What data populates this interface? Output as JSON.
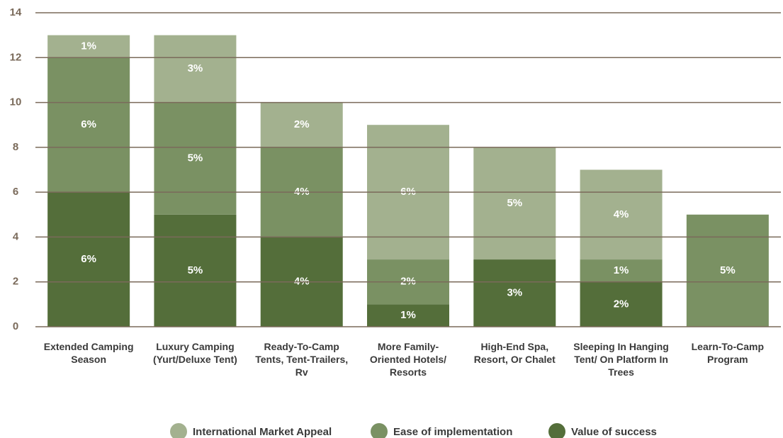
{
  "chart_data": {
    "type": "stacked_bar",
    "categories": [
      "Extended Camping Season",
      "Luxury Camping (Yurt/Deluxe Tent)",
      "Ready-To-Camp Tents, Tent-Trailers, Rv",
      "More Family-Oriented Hotels/ Resorts",
      "High-End Spa, Resort, Or Chalet",
      "Sleeping In Hanging Tent/ On Platform In Trees",
      "Learn-To-Camp Program"
    ],
    "series": [
      {
        "name": "International Market Appeal",
        "color": "#a3b18f",
        "values": [
          1,
          3,
          2,
          6,
          5,
          4,
          null
        ],
        "value_labels": [
          "1%",
          "3%",
          "2%",
          "6%",
          "5%",
          "4%",
          null
        ]
      },
      {
        "name": "Ease of implementation",
        "color": "#7a9163",
        "values": [
          6,
          5,
          4,
          2,
          null,
          1,
          5
        ],
        "value_labels": [
          "6%",
          "5%",
          "4%",
          "2%",
          null,
          "1%",
          "5%"
        ]
      },
      {
        "name": "Value of success",
        "color": "#546e3a",
        "values": [
          6,
          5,
          4,
          1,
          3,
          2,
          null
        ],
        "value_labels": [
          "6%",
          "5%",
          "4%",
          "1%",
          "3%",
          "2%",
          null
        ]
      }
    ],
    "ylim": [
      0,
      14
    ],
    "yticks": [
      0,
      2,
      4,
      6,
      8,
      10,
      12,
      14
    ],
    "grid": true,
    "legend": "bottom"
  }
}
